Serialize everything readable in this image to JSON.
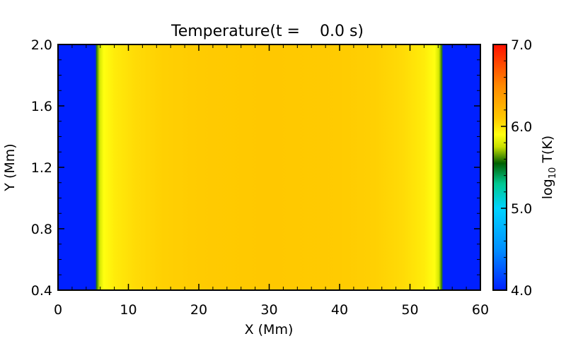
{
  "chart_data": {
    "type": "heatmap",
    "title": "Temperature(t =    0.0 s)",
    "xlabel": "X (Mm)",
    "ylabel": "Y (Mm)",
    "xlim": [
      0,
      60
    ],
    "ylim": [
      0.4,
      2.0
    ],
    "x_ticks": [
      "0",
      "10",
      "20",
      "30",
      "40",
      "50",
      "60"
    ],
    "y_ticks": [
      "0.4",
      "0.8",
      "1.2",
      "1.6",
      "2.0"
    ],
    "colorbar": {
      "label": "log10 T(K)",
      "label_base": "log",
      "label_sub": "10",
      "label_rest": " T(K)",
      "range": [
        4.0,
        7.0
      ],
      "ticks": [
        "4.0",
        "5.0",
        "6.0",
        "7.0"
      ],
      "colormap": [
        {
          "v": 4.0,
          "color": "#0020ff"
        },
        {
          "v": 4.5,
          "color": "#0090ff"
        },
        {
          "v": 5.0,
          "color": "#00d4ff"
        },
        {
          "v": 5.3,
          "color": "#00c890"
        },
        {
          "v": 5.55,
          "color": "#006000"
        },
        {
          "v": 5.75,
          "color": "#c8e000"
        },
        {
          "v": 5.9,
          "color": "#ffff10"
        },
        {
          "v": 6.1,
          "color": "#ffc800"
        },
        {
          "v": 6.5,
          "color": "#ff8800"
        },
        {
          "v": 7.0,
          "color": "#ff1000"
        }
      ]
    },
    "temperature_profile": {
      "x": [
        0,
        5.3,
        5.5,
        5.9,
        6.5,
        8,
        11,
        15,
        20,
        30,
        40,
        45,
        49,
        52,
        53.5,
        54.1,
        54.5,
        54.7,
        60
      ],
      "log10_T": [
        4.0,
        4.0,
        5.6,
        5.78,
        5.9,
        5.97,
        6.03,
        6.07,
        6.09,
        6.1,
        6.09,
        6.07,
        6.03,
        5.97,
        5.9,
        5.78,
        5.6,
        4.0,
        4.0
      ]
    }
  }
}
